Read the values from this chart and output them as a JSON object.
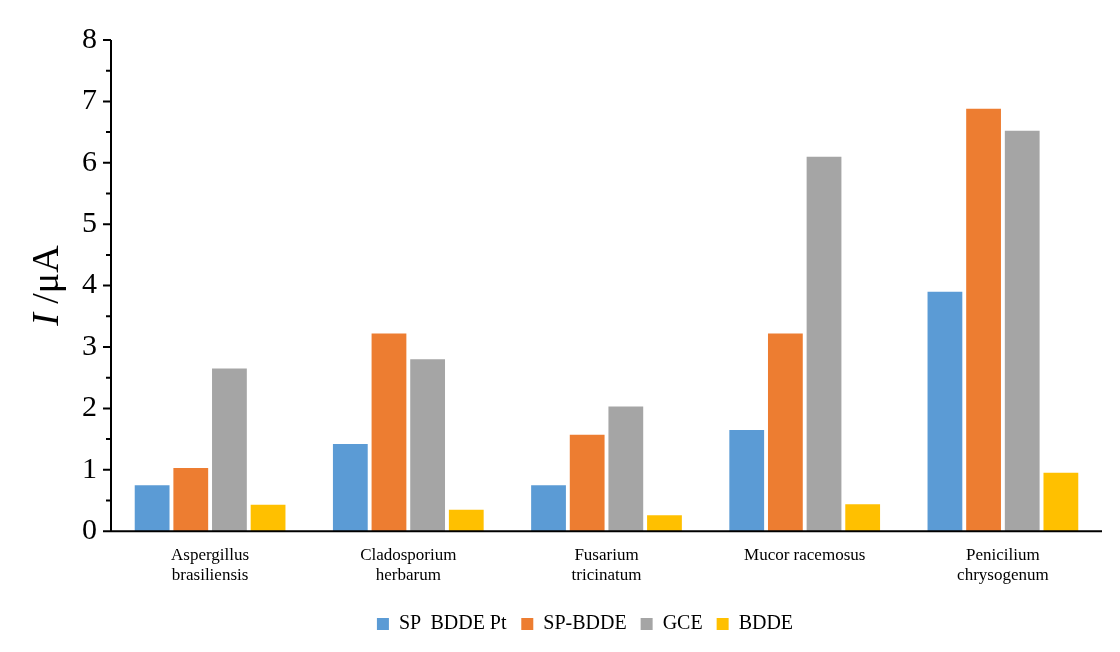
{
  "chart_data": {
    "type": "bar",
    "ylabel": "I /μA",
    "categories": [
      "Aspergillus brasiliensis",
      "Cladosporium herbarum",
      "Fusarium tricinatum",
      "Mucor racemosus",
      "Penicilium chrysogenum"
    ],
    "series": [
      {
        "name": "SP  BDDE Pt",
        "color": "#5b9bd5",
        "values": [
          0.75,
          1.42,
          0.75,
          1.65,
          3.9
        ]
      },
      {
        "name": "SP-BDDE",
        "color": "#ed7d31",
        "values": [
          1.03,
          3.22,
          1.57,
          3.22,
          6.88
        ]
      },
      {
        "name": "GCE",
        "color": "#a5a5a5",
        "values": [
          2.65,
          2.8,
          2.03,
          6.1,
          6.52
        ]
      },
      {
        "name": "BDDE",
        "color": "#ffc000",
        "values": [
          0.43,
          0.35,
          0.26,
          0.44,
          0.95
        ]
      }
    ],
    "ylim": [
      0,
      8
    ],
    "yticks": [
      0,
      {
        "value": 0.5,
        "label": null
      },
      1,
      {
        "value": 1.5,
        "label": null
      },
      2,
      {
        "value": 2.5,
        "label": null
      },
      3,
      {
        "value": 3.5,
        "label": null
      },
      4,
      {
        "value": 4.5,
        "label": null
      },
      5,
      {
        "value": 5.5,
        "label": null
      },
      6,
      {
        "value": 6.5,
        "label": null
      },
      7,
      {
        "value": 7.5,
        "label": null
      },
      8
    ],
    "grid": false,
    "legend": "bottom"
  }
}
